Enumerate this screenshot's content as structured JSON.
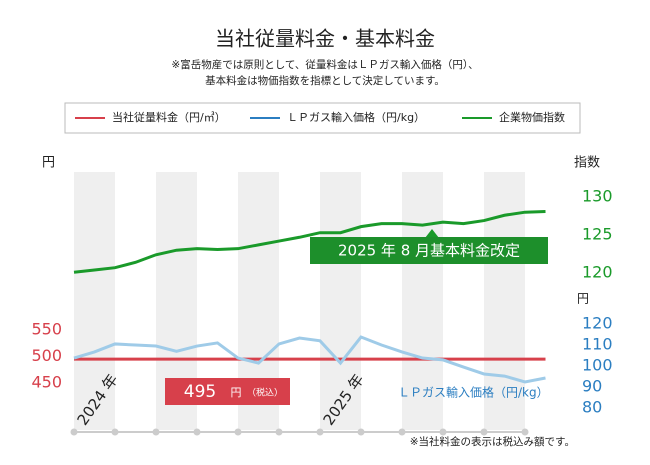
{
  "chart_data": {
    "type": "line",
    "title": "当社従量料金・基本料金",
    "subtitle": [
      "※富岳物産では原則として、従量料金はＬＰガス輸入価格（円）、",
      "基本料金は物価指数を指標として決定しています。"
    ],
    "categories": [
      "2024 年",
      null,
      null,
      null,
      null,
      null,
      null,
      null,
      null,
      null,
      null,
      null,
      "2025 年",
      null,
      null,
      null,
      null,
      null,
      null,
      null,
      null,
      null,
      null,
      null
    ],
    "series": [
      {
        "name": "当社従量料金（円/㎥）",
        "color": "#d7404b",
        "axis": "y",
        "values": [
          495,
          495,
          495,
          495,
          495,
          495,
          495,
          495,
          495,
          495,
          495,
          495,
          495,
          495,
          495,
          495,
          495,
          495,
          495,
          495,
          495,
          495,
          495,
          495
        ]
      },
      {
        "name": "ＬＰガス輸入価格（円/kg）",
        "color": "#2b7ec1",
        "line_color": "#9fcbe8",
        "axis": "y3",
        "values": [
          103.8,
          106.7,
          110.5,
          110,
          109.5,
          107,
          109.5,
          111,
          103.8,
          101.4,
          110.5,
          113.3,
          112,
          101.4,
          113.8,
          110,
          106.7,
          103.8,
          102.9,
          99.5,
          96.2,
          95.2,
          92.4,
          94.3
        ]
      },
      {
        "name": "企業物価指数",
        "color": "#1a9a2a",
        "axis": "y2",
        "values": [
          120.1,
          120.4,
          120.7,
          121.4,
          122.4,
          123,
          123.2,
          123.1,
          123.2,
          123.7,
          124.2,
          124.7,
          125.3,
          125.3,
          126.1,
          126.5,
          126.5,
          126.3,
          126.7,
          126.5,
          126.9,
          127.6,
          128,
          128.1
        ]
      }
    ],
    "ylabel": "円",
    "ylim": [
      450,
      550
    ],
    "yticks": [
      450,
      500,
      550
    ],
    "y2label": "指数",
    "y2lim": [
      120,
      130
    ],
    "y2ticks": [
      120,
      125,
      130
    ],
    "y3label": "円",
    "y3lim": [
      80,
      120
    ],
    "y3ticks": [
      80,
      90,
      100,
      110,
      120
    ],
    "annotations": {
      "red_value": "495",
      "red_unit": "円",
      "red_tax": "（税込）",
      "green_event": "2025 年 8 月基本料金改定",
      "blue_label": "ＬＰガス輸入価格（円/kg）"
    },
    "footnote": "※当社料金の表示は税込み額です。"
  }
}
